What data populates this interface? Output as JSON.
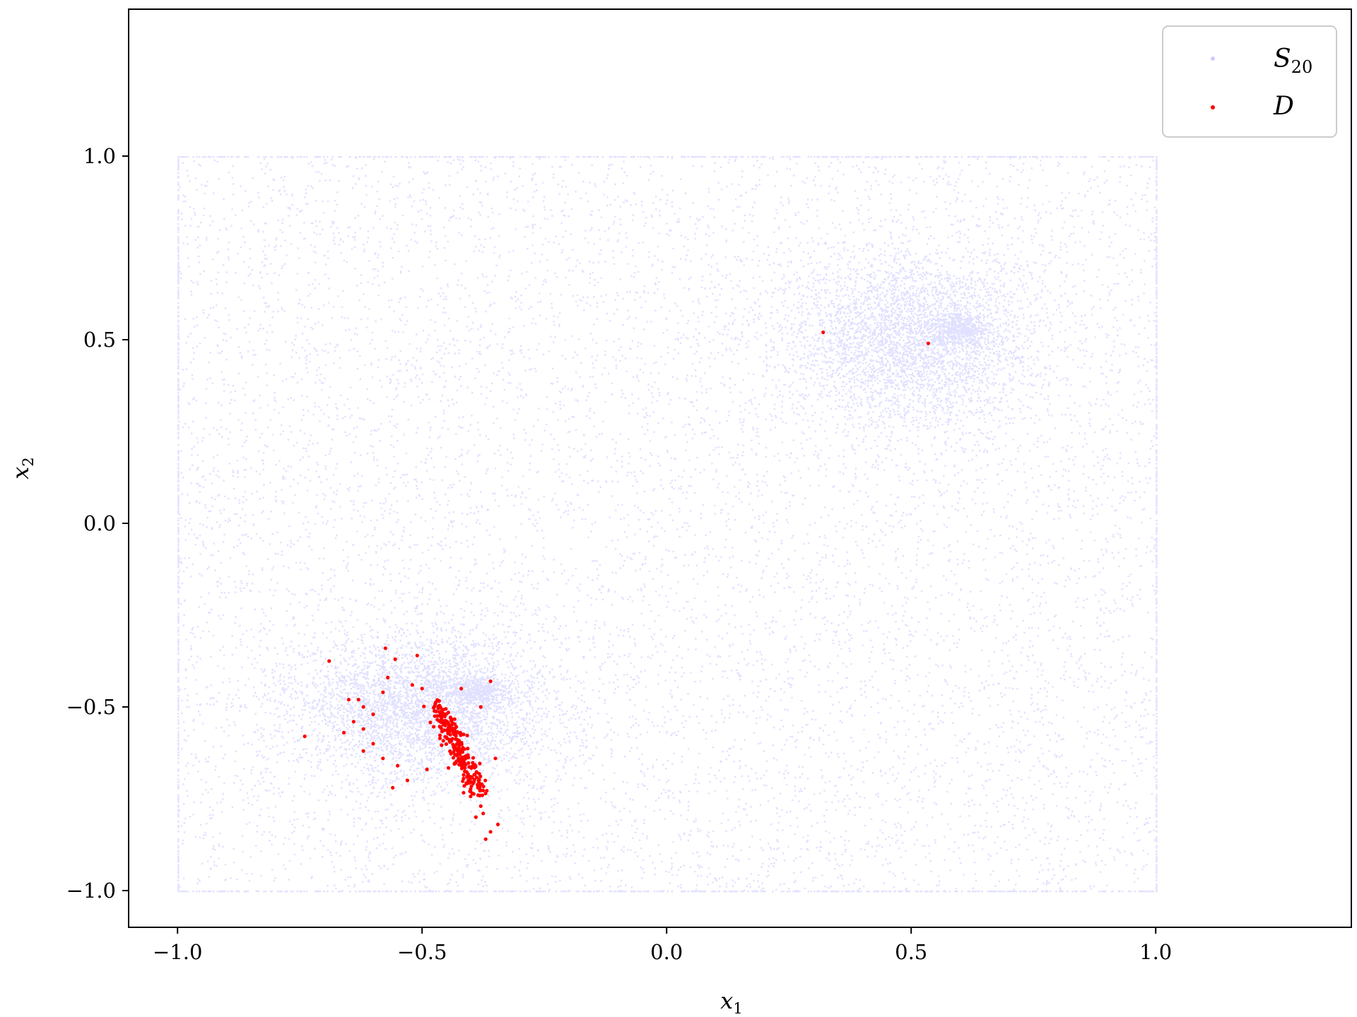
{
  "chart_data": {
    "type": "scatter",
    "title": "",
    "xlabel": {
      "base": "x",
      "sub": "1"
    },
    "ylabel": {
      "base": "x",
      "sub": "2"
    },
    "xlim": [
      -1.1,
      1.4
    ],
    "ylim": [
      -1.1,
      1.4
    ],
    "xticks": [
      -1.0,
      -0.5,
      0.0,
      0.5,
      1.0
    ],
    "yticks": [
      -1.0,
      -0.5,
      0.0,
      0.5,
      1.0
    ],
    "xtick_labels": [
      "−1.0",
      "−0.5",
      "0.0",
      "0.5",
      "1.0"
    ],
    "ytick_labels": [
      "−1.0",
      "−0.5",
      "0.0",
      "0.5",
      "1.0"
    ],
    "grid": false,
    "legend_position": "top-right",
    "series": [
      {
        "name": {
          "base": "S",
          "sub": "20"
        },
        "color": "#0000ff",
        "opacity": 0.12,
        "marker_size_label": "small",
        "description_points": {
          "box_bounds": {
            "x": [
              -1.0,
              1.0
            ],
            "y": [
              -1.0,
              1.0
            ]
          },
          "clusters": [
            {
              "center": [
                0.5,
                0.5
              ],
              "sd": [
                0.13,
                0.12
              ]
            },
            {
              "center": [
                0.6,
                0.53
              ],
              "sd": [
                0.03,
                0.02
              ]
            },
            {
              "center": [
                -0.5,
                -0.5
              ],
              "sd": [
                0.13,
                0.1
              ]
            },
            {
              "center": [
                -0.39,
                -0.46
              ],
              "sd": [
                0.035,
                0.02
              ]
            }
          ]
        }
      },
      {
        "name": {
          "base": "D",
          "sub": ""
        },
        "color": "#ff0000",
        "opacity": 1.0,
        "points": [
          [
            0.32,
            0.52
          ],
          [
            0.535,
            0.49
          ],
          [
            -0.69,
            -0.375
          ],
          [
            -0.74,
            -0.58
          ],
          [
            -0.575,
            -0.34
          ],
          [
            -0.555,
            -0.37
          ],
          [
            -0.51,
            -0.36
          ],
          [
            -0.57,
            -0.42
          ],
          [
            -0.52,
            -0.44
          ],
          [
            -0.5,
            -0.45
          ],
          [
            -0.58,
            -0.46
          ],
          [
            -0.65,
            -0.48
          ],
          [
            -0.63,
            -0.48
          ],
          [
            -0.62,
            -0.5
          ],
          [
            -0.6,
            -0.52
          ],
          [
            -0.64,
            -0.54
          ],
          [
            -0.62,
            -0.56
          ],
          [
            -0.66,
            -0.57
          ],
          [
            -0.6,
            -0.6
          ],
          [
            -0.62,
            -0.62
          ],
          [
            -0.58,
            -0.64
          ],
          [
            -0.55,
            -0.66
          ],
          [
            -0.49,
            -0.67
          ],
          [
            -0.56,
            -0.72
          ],
          [
            -0.53,
            -0.7
          ],
          [
            -0.35,
            -0.64
          ],
          [
            -0.36,
            -0.43
          ],
          [
            -0.42,
            -0.45
          ],
          [
            -0.38,
            -0.5
          ],
          [
            -0.345,
            -0.82
          ],
          [
            -0.36,
            -0.84
          ],
          [
            -0.37,
            -0.86
          ],
          [
            -0.39,
            -0.8
          ],
          [
            -0.38,
            -0.77
          ],
          [
            -0.375,
            -0.79
          ],
          [
            -0.4,
            -0.69
          ]
        ],
        "dense_trail": {
          "from": [
            -0.47,
            -0.49
          ],
          "to": [
            -0.385,
            -0.73
          ],
          "count": 260,
          "spread": 0.012
        }
      }
    ]
  }
}
